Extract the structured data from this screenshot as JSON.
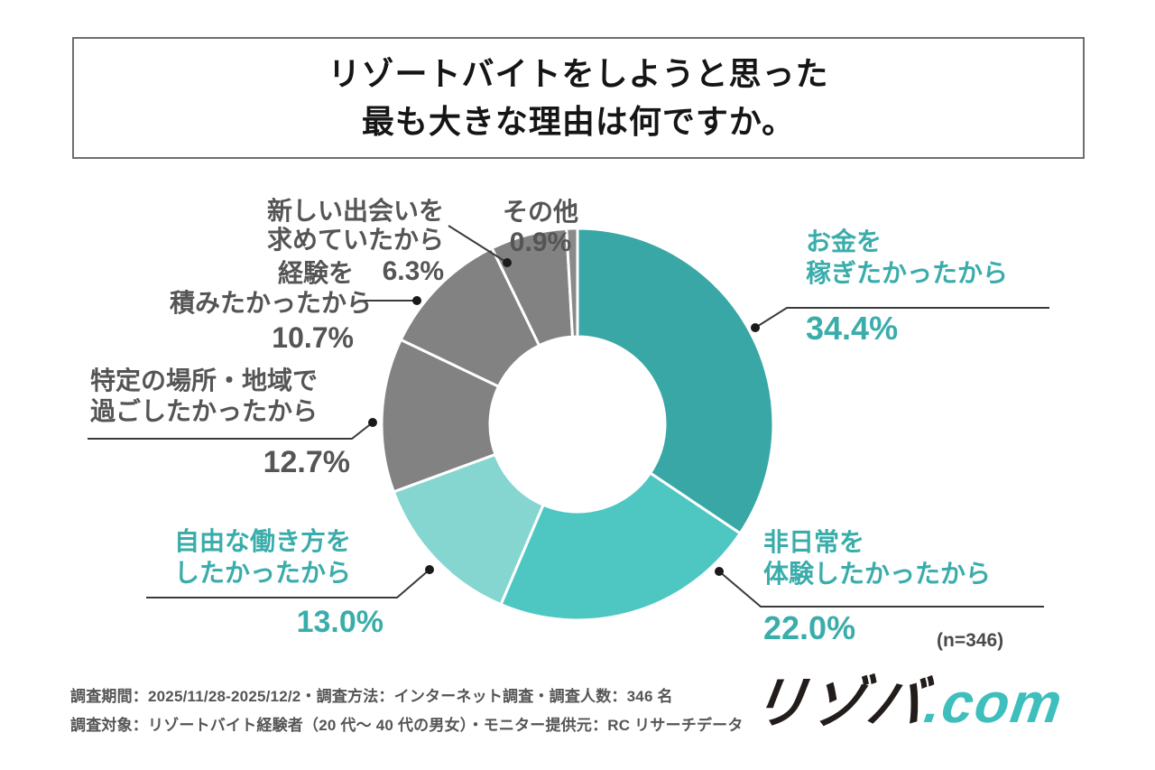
{
  "title": {
    "line1": "リゾートバイトをしようと思った",
    "line2": "最も大きな理由は何ですか。"
  },
  "chart_data": {
    "type": "pie",
    "subtype": "donut",
    "title": "リゾートバイトをしようと思った最も大きな理由は何ですか。",
    "sample_note": "(n=346)",
    "start_angle": "12 o'clock",
    "direction": "clockwise",
    "donut_hole_ratio": 0.45,
    "segments": [
      {
        "label": "お金を稼ぎたかったから",
        "label_lines": [
          "お金を",
          "稼ぎたかったから"
        ],
        "value": 34.4,
        "display": "34.4%",
        "color": "#38a7a6",
        "text_color": "#3aadab"
      },
      {
        "label": "非日常を体験したかったから",
        "label_lines": [
          "非日常を",
          "体験したかったから"
        ],
        "value": 22.0,
        "display": "22.0%",
        "color": "#4ec7c3",
        "text_color": "#3aadab"
      },
      {
        "label": "自由な働き方をしたかったから",
        "label_lines": [
          "自由な働き方を",
          "したかったから"
        ],
        "value": 13.0,
        "display": "13.0%",
        "color": "#85d6d0",
        "text_color": "#3aadab"
      },
      {
        "label": "特定の場所・地域で過ごしたかったから",
        "label_lines": [
          "特定の場所・地域で",
          "過ごしたかったから"
        ],
        "value": 12.7,
        "display": "12.7%",
        "color": "#828282",
        "text_color": "#555555"
      },
      {
        "label": "経験を積みたかったから",
        "label_lines": [
          "経験を",
          "積みたかったから"
        ],
        "value": 10.7,
        "display": "10.7%",
        "color": "#828282",
        "text_color": "#555555"
      },
      {
        "label": "新しい出会いを求めていたから",
        "label_lines": [
          "新しい出会いを",
          "求めていたから"
        ],
        "value": 6.3,
        "display": "6.3%",
        "color": "#828282",
        "text_color": "#555555"
      },
      {
        "label": "その他",
        "label_lines": [
          "その他"
        ],
        "value": 0.9,
        "display": "0.9%",
        "color": "#8a8a8a",
        "text_color": "#555555"
      }
    ]
  },
  "footer": {
    "line1": "調査期間：2025/11/28-2025/12/2・調査方法：インターネット調査・調査人数：346 名",
    "line2": "調査対象：リゾートバイト経験者（20 代〜 40 代の男女）・モニター提供元：RC リサーチデータ"
  },
  "logo": {
    "name": "リゾバ",
    "tld": ".com"
  }
}
